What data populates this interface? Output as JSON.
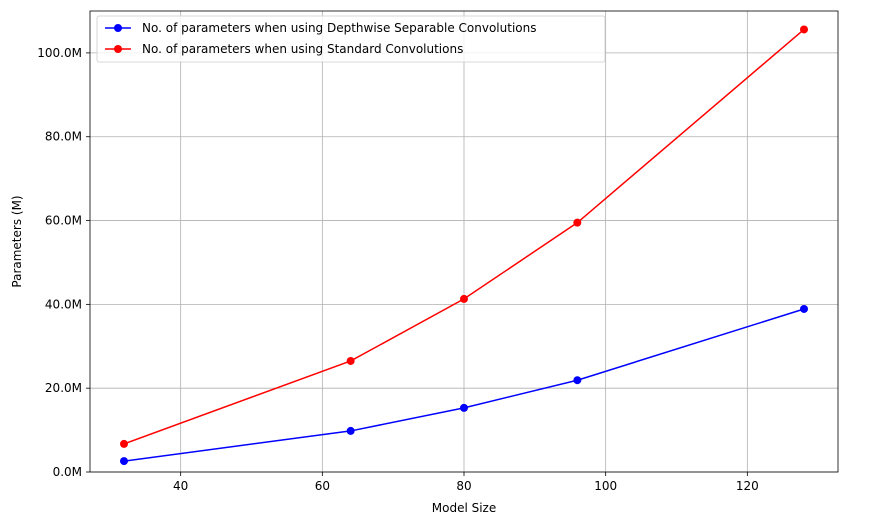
{
  "chart_data": {
    "type": "line",
    "title": "",
    "xlabel": "Model Size",
    "ylabel": "Parameters (M)",
    "x": [
      32,
      64,
      80,
      96,
      128
    ],
    "xlim": [
      27.2,
      132.8
    ],
    "ylim": [
      0,
      110
    ],
    "xticks": [
      40,
      60,
      80,
      100,
      120
    ],
    "yticks": [
      0,
      20,
      40,
      60,
      80,
      100
    ],
    "ytick_labels": [
      "0.0M",
      "20.0M",
      "40.0M",
      "60.0M",
      "80.0M",
      "100.0M"
    ],
    "grid": true,
    "legend_position": "top-left",
    "series": [
      {
        "name": "No. of parameters when using Depthwise Separable Convolutions",
        "color": "#0000ff",
        "values": [
          2.6,
          9.8,
          15.3,
          21.9,
          38.9
        ]
      },
      {
        "name": "No. of parameters when using Standard Convolutions",
        "color": "#ff0000",
        "values": [
          6.7,
          26.5,
          41.3,
          59.5,
          105.6
        ]
      }
    ]
  }
}
